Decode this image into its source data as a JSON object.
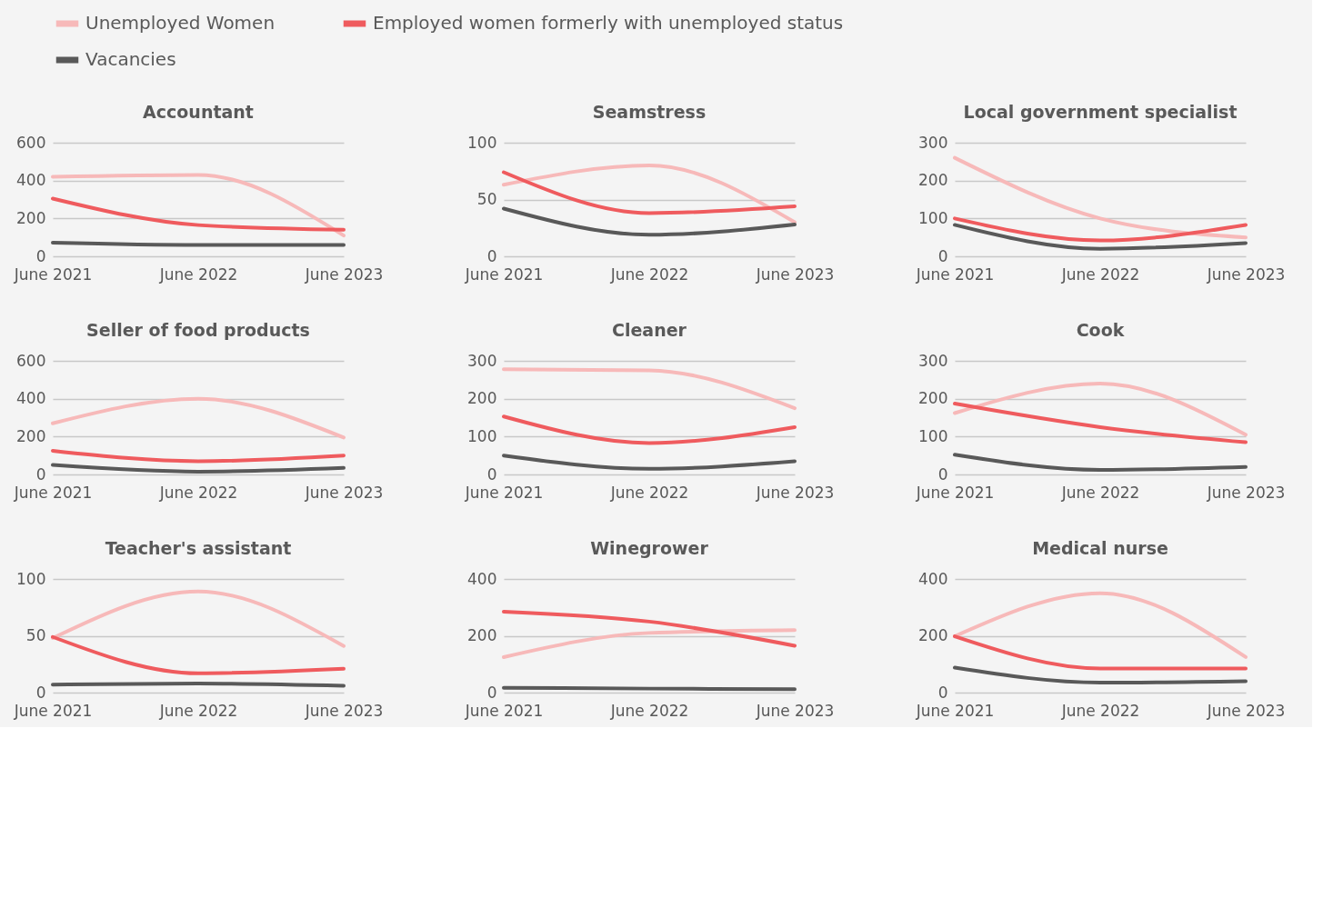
{
  "chart_data": [
    {
      "type": "line",
      "title": "Accountant",
      "categories": [
        "June 2021",
        "June 2022",
        "June 2023"
      ],
      "ylim": [
        0,
        600
      ],
      "yticks": [
        0,
        200,
        400,
        600
      ],
      "grid": "y",
      "legend": "top",
      "series": [
        {
          "name": "Unemployed Women",
          "color": "#f7b9b9",
          "values": [
            420,
            430,
            110
          ]
        },
        {
          "name": "Employed women formerly with unemployed status",
          "color": "#ef5b5e",
          "values": [
            305,
            165,
            140
          ]
        },
        {
          "name": "Vacancies",
          "color": "#595959",
          "values": [
            72,
            60,
            60
          ]
        }
      ]
    },
    {
      "type": "line",
      "title": "Seamstress",
      "categories": [
        "June 2021",
        "June 2022",
        "June 2023"
      ],
      "ylim": [
        0,
        100
      ],
      "yticks": [
        0,
        50,
        100
      ],
      "grid": "y",
      "series": [
        {
          "name": "Unemployed Women",
          "color": "#f7b9b9",
          "values": [
            63,
            80,
            30
          ]
        },
        {
          "name": "Employed women formerly with unemployed status",
          "color": "#ef5b5e",
          "values": [
            74,
            38,
            44
          ]
        },
        {
          "name": "Vacancies",
          "color": "#595959",
          "values": [
            42,
            19,
            28
          ]
        }
      ]
    },
    {
      "type": "line",
      "title": "Local government specialist",
      "categories": [
        "June 2021",
        "June 2022",
        "June 2023"
      ],
      "ylim": [
        0,
        300
      ],
      "yticks": [
        0,
        100,
        200,
        300
      ],
      "grid": "y",
      "series": [
        {
          "name": "Unemployed Women",
          "color": "#f7b9b9",
          "values": [
            260,
            100,
            50
          ]
        },
        {
          "name": "Employed women formerly with unemployed status",
          "color": "#ef5b5e",
          "values": [
            100,
            42,
            83
          ]
        },
        {
          "name": "Vacancies",
          "color": "#595959",
          "values": [
            83,
            20,
            35
          ]
        }
      ]
    },
    {
      "type": "line",
      "title": "Seller of food products",
      "categories": [
        "June 2021",
        "June 2022",
        "June 2023"
      ],
      "ylim": [
        0,
        600
      ],
      "yticks": [
        0,
        200,
        400,
        600
      ],
      "grid": "y",
      "series": [
        {
          "name": "Unemployed Women",
          "color": "#f7b9b9",
          "values": [
            270,
            400,
            195
          ]
        },
        {
          "name": "Employed women formerly with unemployed status",
          "color": "#ef5b5e",
          "values": [
            125,
            70,
            100
          ]
        },
        {
          "name": "Vacancies",
          "color": "#595959",
          "values": [
            50,
            15,
            35
          ]
        }
      ]
    },
    {
      "type": "line",
      "title": "Cleaner",
      "categories": [
        "June 2021",
        "June 2022",
        "June 2023"
      ],
      "ylim": [
        0,
        300
      ],
      "yticks": [
        0,
        100,
        200,
        300
      ],
      "grid": "y",
      "series": [
        {
          "name": "Unemployed Women",
          "color": "#f7b9b9",
          "values": [
            278,
            275,
            175
          ]
        },
        {
          "name": "Employed women formerly with unemployed status",
          "color": "#ef5b5e",
          "values": [
            153,
            83,
            125
          ]
        },
        {
          "name": "Vacancies",
          "color": "#595959",
          "values": [
            50,
            15,
            35
          ]
        }
      ]
    },
    {
      "type": "line",
      "title": "Cook",
      "categories": [
        "June 2021",
        "June 2022",
        "June 2023"
      ],
      "ylim": [
        0,
        300
      ],
      "yticks": [
        0,
        100,
        200,
        300
      ],
      "grid": "y",
      "series": [
        {
          "name": "Unemployed Women",
          "color": "#f7b9b9",
          "values": [
            162,
            240,
            105
          ]
        },
        {
          "name": "Employed women formerly with unemployed status",
          "color": "#ef5b5e",
          "values": [
            187,
            125,
            85
          ]
        },
        {
          "name": "Vacancies",
          "color": "#595959",
          "values": [
            52,
            12,
            20
          ]
        }
      ]
    },
    {
      "type": "line",
      "title": "Teacher's assistant",
      "categories": [
        "June 2021",
        "June 2022",
        "June 2023"
      ],
      "ylim": [
        0,
        100
      ],
      "yticks": [
        0,
        50,
        100
      ],
      "grid": "y",
      "series": [
        {
          "name": "Unemployed Women",
          "color": "#f7b9b9",
          "values": [
            48,
            89,
            41
          ]
        },
        {
          "name": "Employed women formerly with unemployed status",
          "color": "#ef5b5e",
          "values": [
            49,
            17,
            21
          ]
        },
        {
          "name": "Vacancies",
          "color": "#595959",
          "values": [
            7,
            8,
            6
          ]
        }
      ]
    },
    {
      "type": "line",
      "title": "Winegrower",
      "categories": [
        "June 2021",
        "June 2022",
        "June 2023"
      ],
      "ylim": [
        0,
        400
      ],
      "yticks": [
        0,
        200,
        400
      ],
      "grid": "y",
      "series": [
        {
          "name": "Unemployed Women",
          "color": "#f7b9b9",
          "values": [
            125,
            210,
            220
          ]
        },
        {
          "name": "Employed women formerly with unemployed status",
          "color": "#ef5b5e",
          "values": [
            285,
            250,
            165
          ]
        },
        {
          "name": "Vacancies",
          "color": "#595959",
          "values": [
            17,
            14,
            12
          ]
        }
      ]
    },
    {
      "type": "line",
      "title": "Medical nurse",
      "categories": [
        "June 2021",
        "June 2022",
        "June 2023"
      ],
      "ylim": [
        0,
        400
      ],
      "yticks": [
        0,
        200,
        400
      ],
      "grid": "y",
      "series": [
        {
          "name": "Unemployed Women",
          "color": "#f7b9b9",
          "values": [
            198,
            350,
            125
          ]
        },
        {
          "name": "Employed women formerly with unemployed status",
          "color": "#ef5b5e",
          "values": [
            198,
            85,
            85
          ]
        },
        {
          "name": "Vacancies",
          "color": "#595959",
          "values": [
            88,
            35,
            40
          ]
        }
      ]
    }
  ]
}
